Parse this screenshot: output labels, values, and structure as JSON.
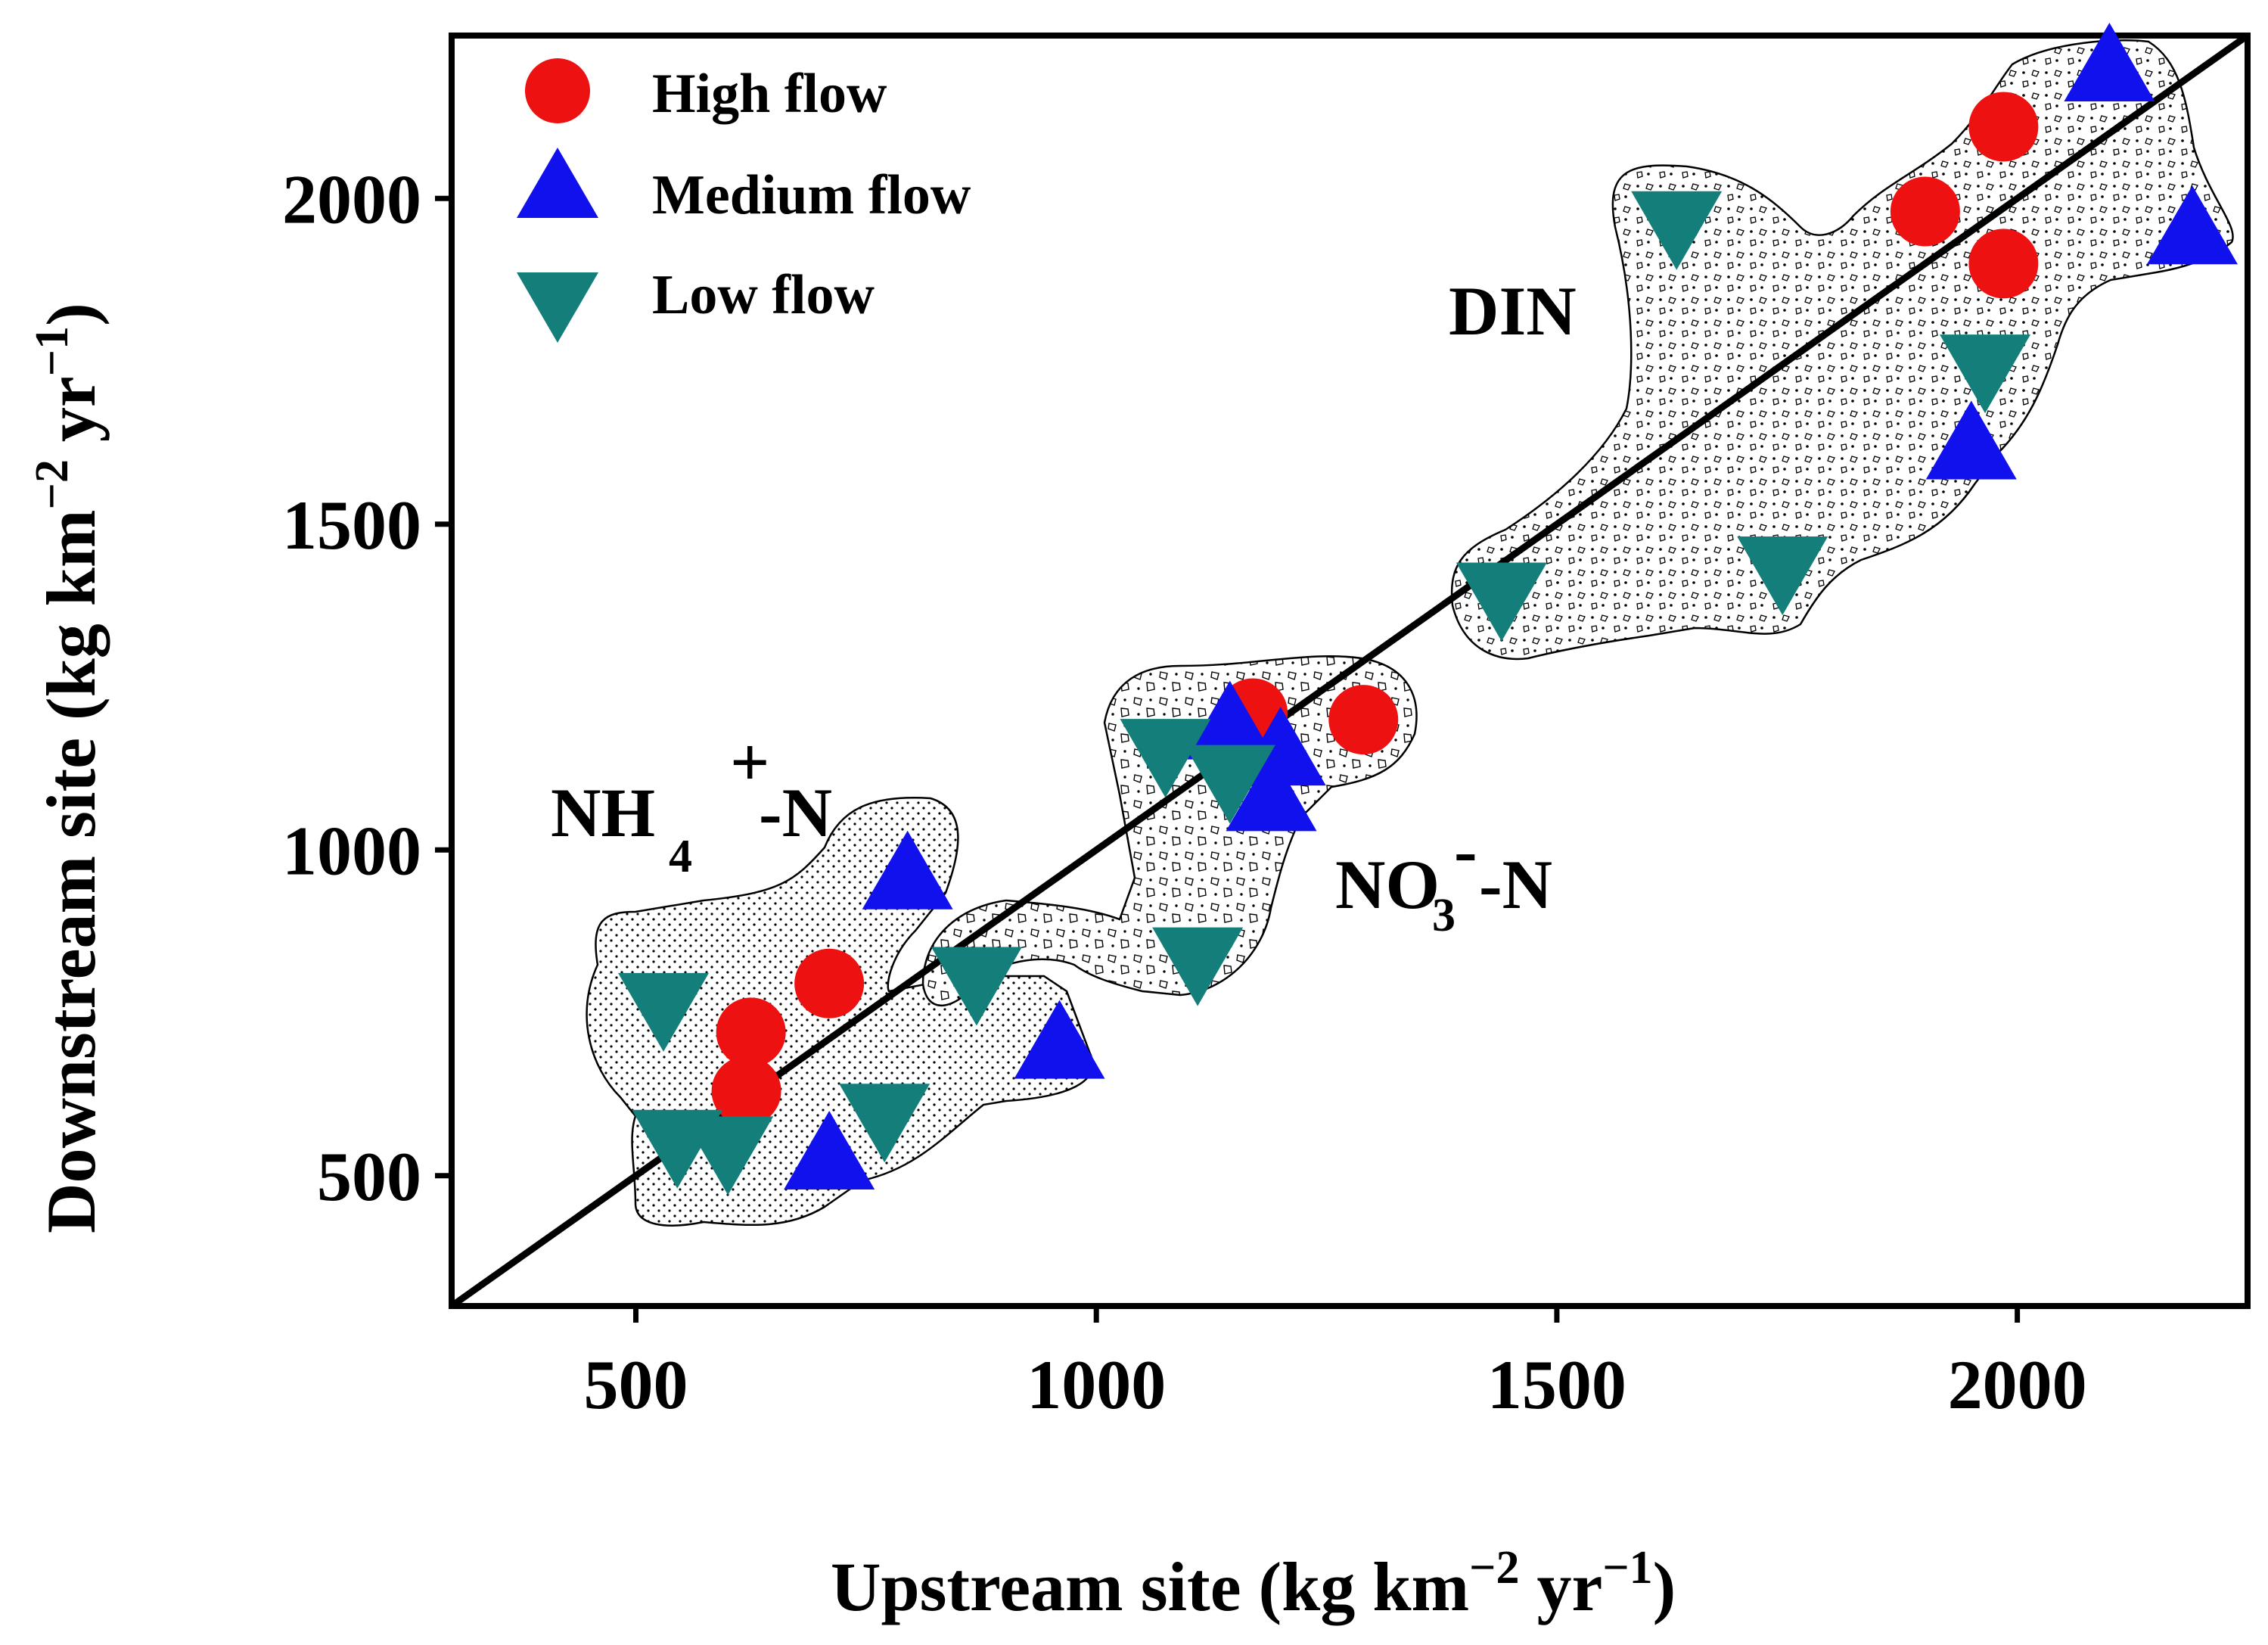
{
  "chart_data": {
    "type": "scatter",
    "title": "",
    "xlabel": {
      "main": "Upstream site (kg km",
      "sup1": "−2",
      "mid": " yr",
      "sup2": "−1",
      "end": ")"
    },
    "ylabel": {
      "main": "Downstream site (kg km",
      "sup1": "−2",
      "mid": " yr",
      "sup2": "−1",
      "end": ")"
    },
    "xlim": [
      300,
      2250
    ],
    "ylim": [
      300,
      2250
    ],
    "xticks": [
      500,
      1000,
      1500,
      2000
    ],
    "yticks": [
      500,
      1000,
      1500,
      2000
    ],
    "xtick_labels": [
      "500",
      "1000",
      "1500",
      "2000"
    ],
    "ytick_labels": [
      "500",
      "1000",
      "1500",
      "2000"
    ],
    "reference_line": "1:1",
    "legend": {
      "position": "top-left"
    },
    "colors": {
      "high": "#ee1111",
      "medium": "#1111ee",
      "low": "#147f7a"
    },
    "series": [
      {
        "name": "High flow",
        "marker": "circle",
        "color_key": "high",
        "points": [
          [
            625,
            720
          ],
          [
            620,
            630
          ],
          [
            710,
            795
          ],
          [
            1170,
            1210
          ],
          [
            1290,
            1200
          ],
          [
            1900,
            1980
          ],
          [
            1985,
            2110
          ],
          [
            1985,
            1900
          ]
        ]
      },
      {
        "name": "Medium flow",
        "marker": "triangle-up",
        "color_key": "medium",
        "points": [
          [
            795,
            960
          ],
          [
            960,
            700
          ],
          [
            710,
            530
          ],
          [
            1145,
            1190
          ],
          [
            1200,
            1150
          ],
          [
            1190,
            1080
          ],
          [
            1950,
            1620
          ],
          [
            2100,
            2200
          ],
          [
            2190,
            1950
          ]
        ]
      },
      {
        "name": "Low flow",
        "marker": "triangle-down",
        "color_key": "low",
        "points": [
          [
            530,
            760
          ],
          [
            545,
            550
          ],
          [
            600,
            540
          ],
          [
            770,
            590
          ],
          [
            870,
            800
          ],
          [
            1110,
            830
          ],
          [
            1075,
            1150
          ],
          [
            1145,
            1110
          ],
          [
            1440,
            1390
          ],
          [
            1745,
            1430
          ],
          [
            1630,
            1960
          ],
          [
            1965,
            1740
          ]
        ]
      }
    ],
    "annotations": {
      "din": "DIN",
      "nh4_main": "NH",
      "nh4_sub": "4",
      "nh4_sup": "+",
      "nh4_tail": "-N",
      "no3_main": "NO",
      "no3_sub": "3",
      "no3_sup": "-",
      "no3_tail": "-N"
    }
  }
}
